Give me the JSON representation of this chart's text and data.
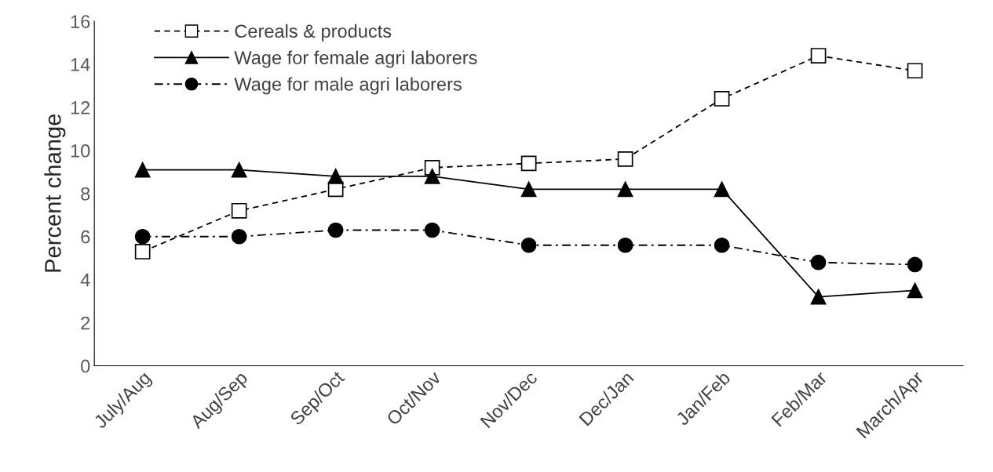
{
  "chart_data": {
    "type": "line",
    "ylabel": "Percent change",
    "categories": [
      "July/Aug",
      "Aug/Sep",
      "Sep/Oct",
      "Oct/Nov",
      "Nov/Dec",
      "Dec/Jan",
      "Jan/Feb",
      "Feb/Mar",
      "March/Apr"
    ],
    "series": [
      {
        "name": "Cereals & products",
        "color": "#000000",
        "marker": "square",
        "line_style": "dashed",
        "values": [
          5.3,
          7.2,
          8.2,
          9.2,
          9.4,
          9.6,
          12.4,
          14.4,
          13.7
        ]
      },
      {
        "name": "Wage for female agri laborers",
        "color": "#000000",
        "marker": "triangle",
        "line_style": "solid",
        "values": [
          9.1,
          9.1,
          8.8,
          8.8,
          8.2,
          8.2,
          8.2,
          3.2,
          3.5
        ]
      },
      {
        "name": "Wage for male agri laborers",
        "color": "#000000",
        "marker": "circle",
        "line_style": "dashdot",
        "values": [
          6.0,
          6.0,
          6.3,
          6.3,
          5.6,
          5.6,
          5.6,
          4.8,
          4.7
        ]
      }
    ],
    "ylim": [
      0,
      16
    ],
    "yticks": [
      0,
      2,
      4,
      6,
      8,
      10,
      12,
      14,
      16
    ],
    "grid": false,
    "legend": "top left"
  }
}
